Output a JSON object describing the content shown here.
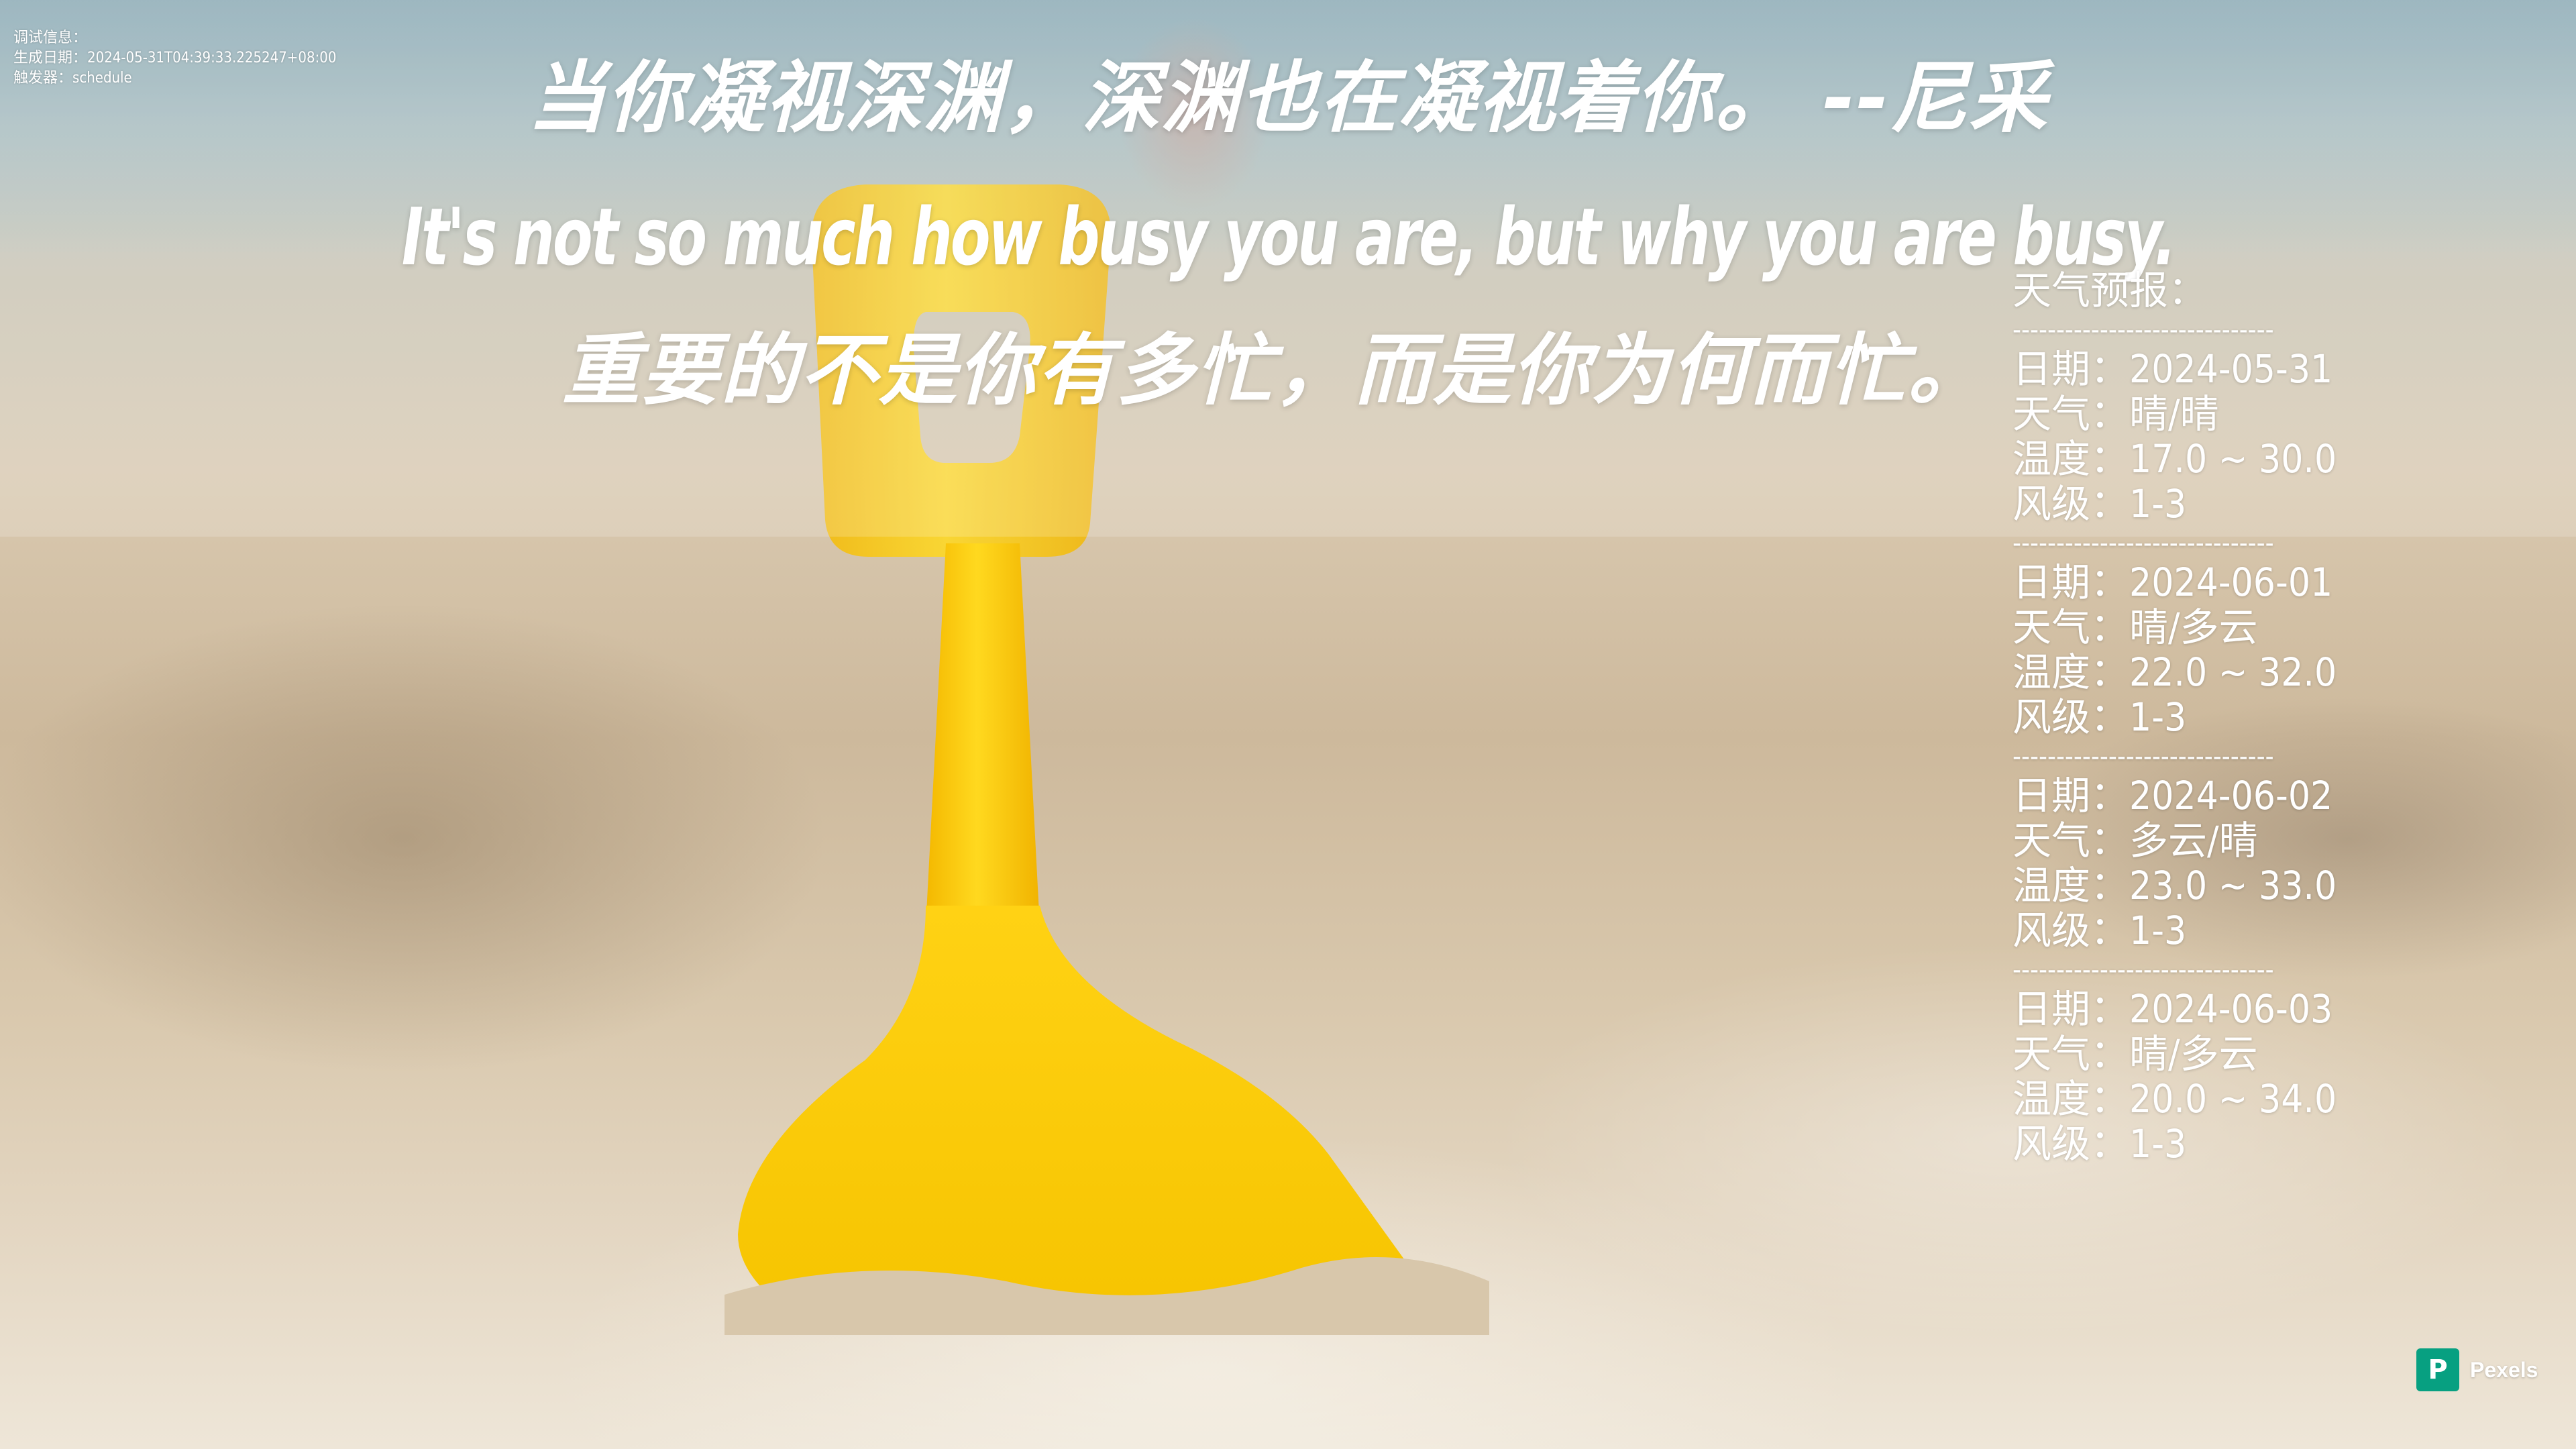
{
  "debug": {
    "label_info": "调试信息：",
    "label_generated": "生成日期：",
    "generated_at": "2024-05-31T04:39:33.225247+08:00",
    "label_trigger": "触发器：",
    "trigger": "schedule"
  },
  "quote": {
    "cn_line": "当你凝视深渊，深渊也在凝视着你。   --尼采",
    "en_line": "It's not so much how busy you are, but why you are busy.",
    "cn_translation": "重要的不是你有多忙，而是你为何而忙。"
  },
  "weather": {
    "title": "天气预报：",
    "separator": "------------------------------",
    "labels": {
      "date": "日期：",
      "weather": "天气：",
      "temperature": "温度：",
      "wind": "风级："
    },
    "days": [
      {
        "date": "2024-05-31",
        "weather": "晴/晴",
        "temperature": "17.0 ~ 30.0",
        "wind": "1-3"
      },
      {
        "date": "2024-06-01",
        "weather": "晴/多云",
        "temperature": "22.0 ~ 32.0",
        "wind": "1-3"
      },
      {
        "date": "2024-06-02",
        "weather": "多云/晴",
        "temperature": "23.0 ~ 33.0",
        "wind": "1-3"
      },
      {
        "date": "2024-06-03",
        "weather": "晴/多云",
        "temperature": "20.0 ~ 34.0",
        "wind": "1-3"
      }
    ]
  },
  "watermark": {
    "logo_letter": "P",
    "text": "Pexels",
    "color": "#07a081"
  },
  "colors": {
    "shovel": "#ffd21f",
    "text": "#ffffff"
  }
}
